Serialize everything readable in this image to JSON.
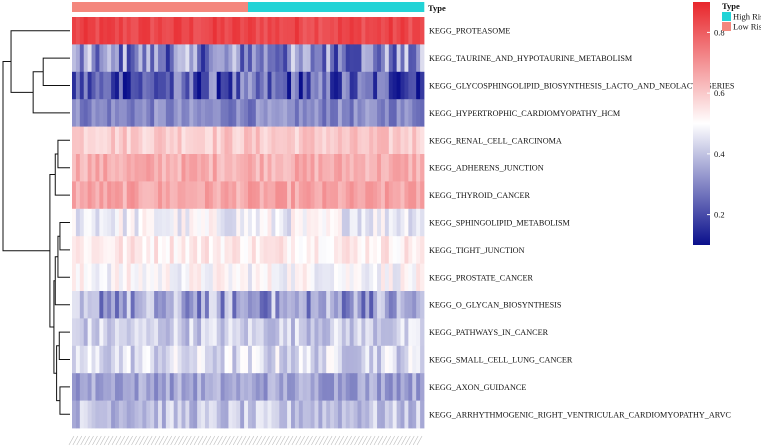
{
  "chart_data": {
    "type": "heatmap",
    "annotation_title": "Type",
    "groups": [
      {
        "name": "Low Risk",
        "color": "#f4877d",
        "count": 45
      },
      {
        "name": "High Risk",
        "color": "#22d3d6",
        "count": 45
      }
    ],
    "legend_type": {
      "title": "Type",
      "items": [
        {
          "label": "High Risk",
          "color": "#22d3d6"
        },
        {
          "label": "Low Risk",
          "color": "#f4877d"
        }
      ]
    },
    "colorbar": {
      "ticks": [
        0.8,
        0.6,
        0.4,
        0.2
      ],
      "range": [
        0.1,
        0.9
      ],
      "colors": [
        "#0a0f8c",
        "#ffffff",
        "#e8262b"
      ]
    },
    "rows": [
      {
        "label": "KEGG_PROTEASOME",
        "mean": 0.84,
        "spread": 0.04
      },
      {
        "label": "KEGG_TAURINE_AND_HYPOTAURINE_METABOLISM",
        "mean": 0.3,
        "spread": 0.15
      },
      {
        "label": "KEGG_GLYCOSPHINGOLIPID_BIOSYNTHESIS_LACTO_AND_NEOLACTO_SERIES",
        "mean": 0.22,
        "spread": 0.14
      },
      {
        "label": "KEGG_HYPERTROPHIC_CARDIOMYOPATHY_HCM",
        "mean": 0.3,
        "spread": 0.06
      },
      {
        "label": "KEGG_RENAL_CELL_CARCINOMA",
        "mean": 0.6,
        "spread": 0.05
      },
      {
        "label": "KEGG_ADHERENS_JUNCTION",
        "mean": 0.65,
        "spread": 0.05
      },
      {
        "label": "KEGG_THYROID_CANCER",
        "mean": 0.66,
        "spread": 0.05
      },
      {
        "label": "KEGG_SPHINGOLIPID_METABOLISM",
        "mean": 0.48,
        "spread": 0.07
      },
      {
        "label": "KEGG_TIGHT_JUNCTION",
        "mean": 0.54,
        "spread": 0.05
      },
      {
        "label": "KEGG_PROSTATE_CANCER",
        "mean": 0.5,
        "spread": 0.06
      },
      {
        "label": "KEGG_O_GLYCAN_BIOSYNTHESIS",
        "mean": 0.34,
        "spread": 0.12
      },
      {
        "label": "KEGG_PATHWAYS_IN_CANCER",
        "mean": 0.42,
        "spread": 0.07
      },
      {
        "label": "KEGG_SMALL_CELL_LUNG_CANCER",
        "mean": 0.44,
        "spread": 0.08
      },
      {
        "label": "KEGG_AXON_GUIDANCE",
        "mean": 0.35,
        "spread": 0.06
      },
      {
        "label": "KEGG_ARRHYTHMOGENIC_RIGHT_VENTRICULAR_CARDIOMYOPATHY_ARVC",
        "mean": 0.4,
        "spread": 0.07
      }
    ],
    "row_dendrogram": [
      {
        "a": 4,
        "b": 5,
        "h": 0.18
      },
      {
        "a": 15,
        "b": 6,
        "h": 0.22
      },
      {
        "a": 7,
        "b": 8,
        "h": 0.15
      },
      {
        "a": 17,
        "b": 9,
        "h": 0.18
      },
      {
        "a": 11,
        "b": 12,
        "h": 0.16
      },
      {
        "a": 13,
        "b": 14,
        "h": 0.15
      },
      {
        "a": 19,
        "b": 20,
        "h": 0.2
      },
      {
        "a": 18,
        "b": 10,
        "h": 0.22
      },
      {
        "a": 22,
        "b": 21,
        "h": 0.24
      },
      {
        "a": 16,
        "b": 23,
        "h": 0.3
      },
      {
        "a": 1,
        "b": 2,
        "h": 0.4
      },
      {
        "a": 25,
        "b": 3,
        "h": 0.55
      },
      {
        "a": 0,
        "b": 26,
        "h": 0.88
      },
      {
        "a": 27,
        "b": 24,
        "h": 1.0
      }
    ]
  }
}
